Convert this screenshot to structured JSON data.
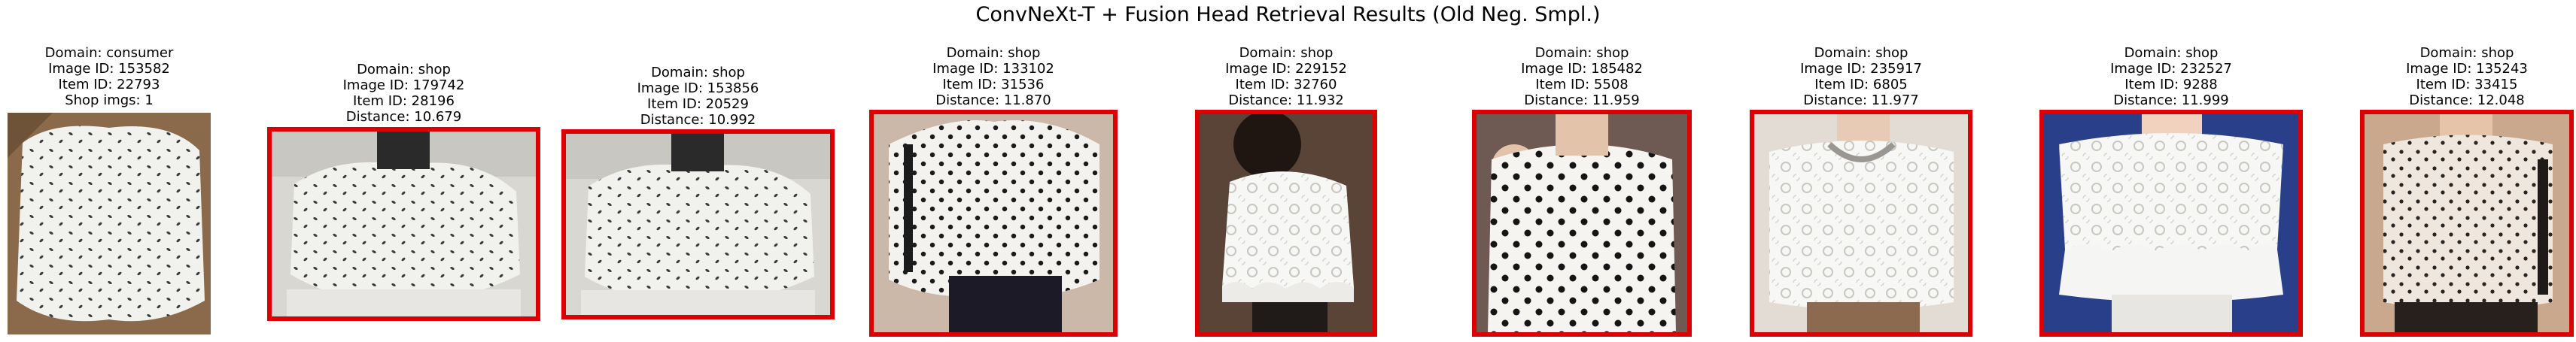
{
  "figure": {
    "title": "ConvNeXt-T + Fusion Head Retrieval Results (Old Neg. Smpl.)"
  },
  "query": {
    "domain": "Domain: consumer",
    "image_id": "Image ID: 153582",
    "item_id": "Item ID: 22793",
    "shop_imgs": "Shop imgs: 1"
  },
  "results": [
    {
      "domain": "Domain: shop",
      "image_id": "Image ID: 179742",
      "item_id": "Item ID: 28196",
      "distance": "Distance: 10.679",
      "match": true
    },
    {
      "domain": "Domain: shop",
      "image_id": "Image ID: 153856",
      "item_id": "Item ID: 20529",
      "distance": "Distance: 10.992",
      "match": true
    },
    {
      "domain": "Domain: shop",
      "image_id": "Image ID: 133102",
      "item_id": "Item ID: 31536",
      "distance": "Distance: 11.870",
      "match": true
    },
    {
      "domain": "Domain: shop",
      "image_id": "Image ID: 229152",
      "item_id": "Item ID: 32760",
      "distance": "Distance: 11.932",
      "match": true
    },
    {
      "domain": "Domain: shop",
      "image_id": "Image ID: 185482",
      "item_id": "Item ID: 5508",
      "distance": "Distance: 11.959",
      "match": true
    },
    {
      "domain": "Domain: shop",
      "image_id": "Image ID: 235917",
      "item_id": "Item ID: 6805",
      "distance": "Distance: 11.977",
      "match": true
    },
    {
      "domain": "Domain: shop",
      "image_id": "Image ID: 232527",
      "item_id": "Item ID: 9288",
      "distance": "Distance: 11.999",
      "match": true
    },
    {
      "domain": "Domain: shop",
      "image_id": "Image ID: 135243",
      "item_id": "Item ID: 33415",
      "distance": "Distance: 12.048",
      "match": true
    }
  ],
  "colors": {
    "match_border": "#dd0000",
    "background": "#ffffff"
  }
}
